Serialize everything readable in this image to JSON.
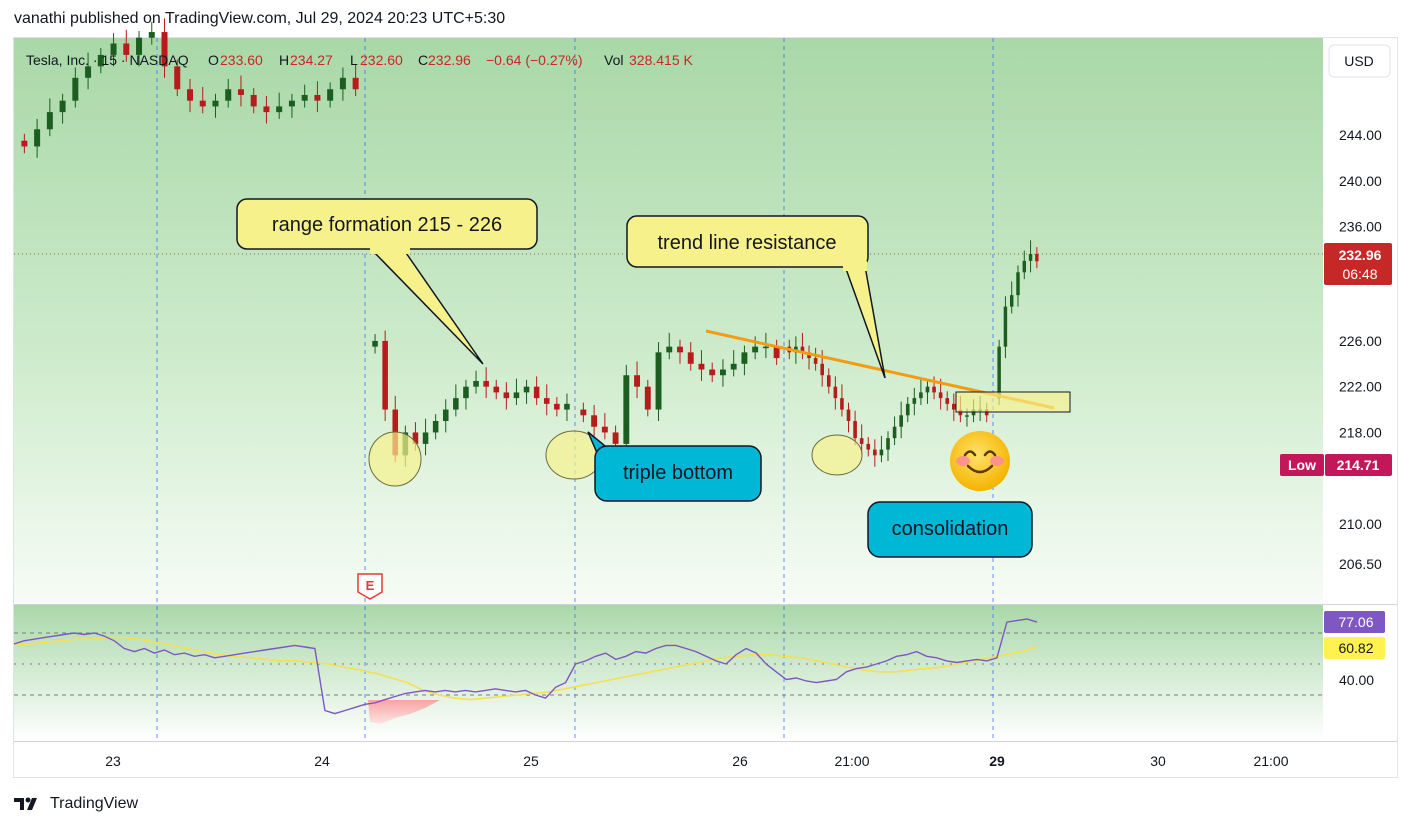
{
  "header": {
    "publisher_line": "vanathi published on TradingView.com, Jul 29, 2024 20:23 UTC+5:30"
  },
  "legend": {
    "symbol": "Tesla, Inc. · 15 · NASDAQ",
    "open_label": "O",
    "open": "233.60",
    "high_label": "H",
    "high": "234.27",
    "low_label": "L",
    "low": "232.60",
    "close_label": "C",
    "close": "232.96",
    "change": "−0.64 (−0.27%)",
    "vol_label": "Vol",
    "vol": "328.415 K"
  },
  "currency_button": "USD",
  "price_tag": {
    "value": "232.96",
    "countdown": "06:48"
  },
  "low_tag": {
    "label": "Low",
    "value": "214.71"
  },
  "rsi_tags": {
    "rsi": "77.06",
    "ma": "60.82"
  },
  "annotations": {
    "range": "range formation 215 - 226",
    "trendline": "trend line resistance",
    "triple_bottom": "triple bottom",
    "consolidation": "consolidation",
    "earnings_marker": "E",
    "emoji": "smiling-face-icon"
  },
  "footer": {
    "brand": "TradingView"
  },
  "colors": {
    "up": "#1b5e20",
    "down": "#b71c1c",
    "trendline": "#f39c12",
    "callout_yellow": "#f7f18c",
    "callout_blue": "#00b7d6",
    "rsi_line": "#7e57c2",
    "rsi_ma": "#f5e050",
    "price_tag": "#c62828",
    "low_tag": "#c2185b",
    "rsi_tag": "#7e57c2",
    "ma_tag": "#fff250"
  },
  "chart_data": {
    "type": "candlestick",
    "title": "Tesla, Inc. · 15 · NASDAQ",
    "y_axis": {
      "ticks": [
        244,
        240,
        236,
        226,
        222,
        218,
        210,
        206.5
      ],
      "labels": [
        "244.00",
        "240.00",
        "236.00",
        "226.00",
        "222.00",
        "218.00",
        "210.00",
        "206.50"
      ],
      "range": [
        203,
        253
      ]
    },
    "x_axis": {
      "labels": [
        "23",
        "24",
        "25",
        "26",
        "21:00",
        "29",
        "30",
        "21:00"
      ]
    },
    "session_closes": [
      {
        "session": "Jul 23",
        "values": [
          243,
          244.5,
          246,
          247,
          249,
          250,
          251,
          252,
          251,
          252.5,
          253,
          250,
          248,
          247,
          246.5,
          247,
          248,
          247.5,
          246.5,
          246,
          246.5,
          247,
          247.5,
          247,
          248,
          249,
          248
        ]
      },
      {
        "session": "Jul 24",
        "values": [
          226,
          220,
          216,
          218,
          217,
          218,
          219,
          220,
          221,
          222,
          222.5,
          222,
          221.5,
          221,
          221.5,
          222,
          221,
          220.5,
          220,
          220.5
        ]
      },
      {
        "session": "Jul 25",
        "values": [
          219.5,
          218.5,
          218,
          217,
          223,
          222,
          220,
          225,
          225.5,
          225,
          224,
          223.5,
          223,
          223.5,
          224,
          225,
          225.5,
          225.5,
          224.5
        ]
      },
      {
        "session": "Jul 26",
        "values": [
          225,
          225.5,
          225,
          224.5,
          224,
          223,
          222,
          221,
          220,
          219,
          217.5,
          217,
          216.5,
          216,
          216.5,
          217.5,
          218.5,
          219.5,
          220.5,
          221,
          221.5,
          222,
          221.5,
          221,
          220.5,
          220,
          219.5,
          219.5,
          220,
          220,
          219.5
        ]
      },
      {
        "session": "Jul 29",
        "values": [
          225.5,
          229,
          230,
          232,
          233,
          233.6,
          232.96
        ]
      }
    ],
    "low_marker": 214.71,
    "last_price": 232.96,
    "rsi": {
      "name": "RSI",
      "levels": [
        70,
        50,
        30
      ],
      "values": [
        63,
        65,
        66,
        67,
        68,
        69,
        70,
        69,
        70,
        68,
        65,
        60,
        58,
        60,
        57,
        59,
        56,
        57,
        55,
        56,
        54,
        55,
        56,
        57,
        58,
        59,
        60,
        61,
        62,
        61,
        60,
        20,
        18,
        20,
        22,
        24,
        25,
        27,
        29,
        31,
        32,
        33,
        32,
        33,
        32,
        33,
        32,
        33,
        34,
        33,
        32,
        33,
        30,
        28,
        35,
        38,
        50,
        52,
        55,
        57,
        53,
        55,
        58,
        57,
        60,
        62,
        62,
        60,
        58,
        55,
        52,
        50,
        56,
        60,
        57,
        50,
        45,
        40,
        41,
        39,
        38,
        39,
        40,
        45,
        47,
        48,
        50,
        52,
        55,
        56,
        58,
        55,
        54,
        52,
        51,
        52,
        53,
        52,
        54,
        77,
        78,
        79,
        77.06
      ],
      "ma_values": [
        62,
        63,
        64,
        65,
        66,
        66,
        67,
        67,
        66,
        64,
        62,
        60,
        58,
        56,
        55,
        54,
        53,
        52,
        52,
        51,
        50,
        48,
        46,
        44,
        41,
        38,
        33,
        30,
        28,
        27,
        28,
        29,
        30,
        31,
        32,
        34,
        36,
        38,
        40,
        42,
        44,
        46,
        48,
        50,
        52,
        54,
        55,
        56,
        56,
        55,
        54,
        52,
        50,
        48,
        46,
        45,
        45,
        46,
        47,
        48,
        50,
        52,
        54,
        56,
        58,
        60.82
      ],
      "latest": 77.06,
      "ma_latest": 60.82
    }
  }
}
